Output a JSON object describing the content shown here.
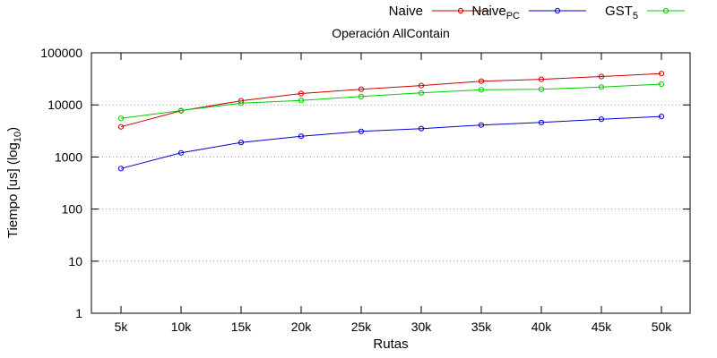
{
  "chart_data": {
    "type": "line",
    "title": "Operación AllContain",
    "xlabel": "Rutas",
    "ylabel": {
      "main": "Tiempo [us] (log",
      "sub": "10",
      "end": ")"
    },
    "y_scale": "log10",
    "ylim": [
      1,
      100000
    ],
    "grid": "horizontal dotted",
    "legend_position": "top-right",
    "categories": [
      "5k",
      "10k",
      "15k",
      "20k",
      "25k",
      "30k",
      "35k",
      "40k",
      "45k",
      "50k"
    ],
    "y_tick_labels": [
      "1",
      "10",
      "100",
      "1000",
      "10000",
      "100000"
    ],
    "y_tick_values": [
      1,
      10,
      100,
      1000,
      10000,
      100000
    ],
    "series": [
      {
        "name": {
          "main": "Naive",
          "sub": ""
        },
        "color": "#cc0000",
        "values": [
          3800,
          7700,
          12000,
          16500,
          20000,
          23500,
          28500,
          31000,
          35000,
          40000
        ]
      },
      {
        "name": {
          "main": "Naive",
          "sub": "PC"
        },
        "color": "#0000cc",
        "values": [
          600,
          1200,
          1900,
          2500,
          3100,
          3500,
          4100,
          4600,
          5300,
          6000
        ]
      },
      {
        "name": {
          "main": "GST",
          "sub": "5"
        },
        "color": "#00cc00",
        "values": [
          5500,
          7800,
          10800,
          12200,
          14500,
          17000,
          19500,
          20000,
          22000,
          25000
        ]
      }
    ]
  }
}
